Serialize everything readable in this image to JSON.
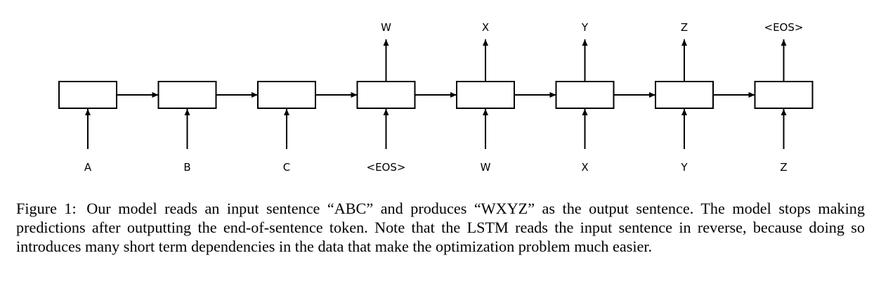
{
  "diagram": {
    "inputs": [
      "A",
      "B",
      "C",
      "<EOS>",
      "W",
      "X",
      "Y",
      "Z"
    ],
    "outputs": [
      "",
      "",
      "",
      "W",
      "X",
      "Y",
      "Z",
      "<EOS>"
    ]
  },
  "caption": {
    "label": "Figure 1:",
    "text": "Our model reads an input sentence “ABC” and produces “WXYZ” as the output sentence. The model stops making predictions after outputting the end-of-sentence token. Note that the LSTM reads the input sentence in reverse, because doing so introduces many short term dependencies in the data that make the optimization problem much easier."
  }
}
